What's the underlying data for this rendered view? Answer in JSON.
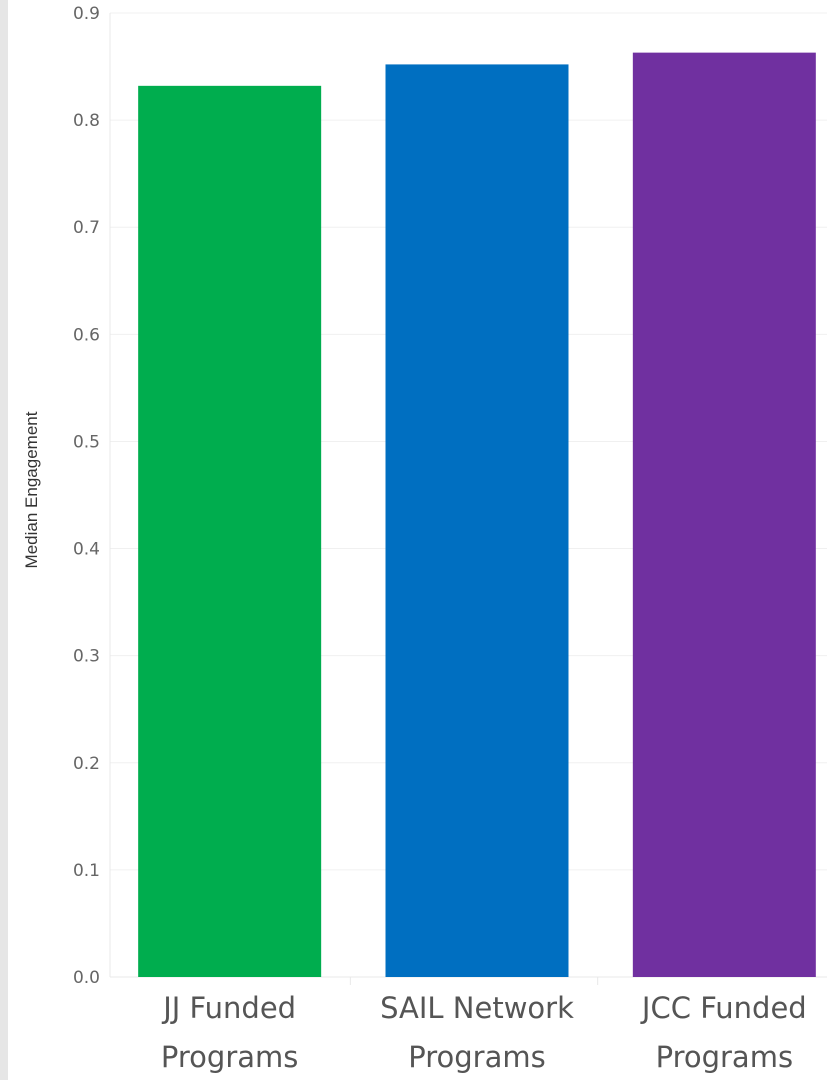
{
  "chart_data": {
    "type": "bar",
    "categories": [
      [
        "JJ Funded",
        "Programs"
      ],
      [
        "SAIL Network",
        "Programs"
      ],
      [
        "JCC Funded",
        "Programs"
      ]
    ],
    "values": [
      0.832,
      0.852,
      0.863
    ],
    "colors": [
      "#00ad4e",
      "#006fc1",
      "#7030a0"
    ],
    "xlabel": "",
    "ylabel": "Median Engagement",
    "ylim": [
      0.0,
      0.9
    ],
    "yticks": [
      "0.0",
      "0.1",
      "0.2",
      "0.3",
      "0.4",
      "0.5",
      "0.6",
      "0.7",
      "0.8",
      "0.9"
    ],
    "grid": true
  }
}
